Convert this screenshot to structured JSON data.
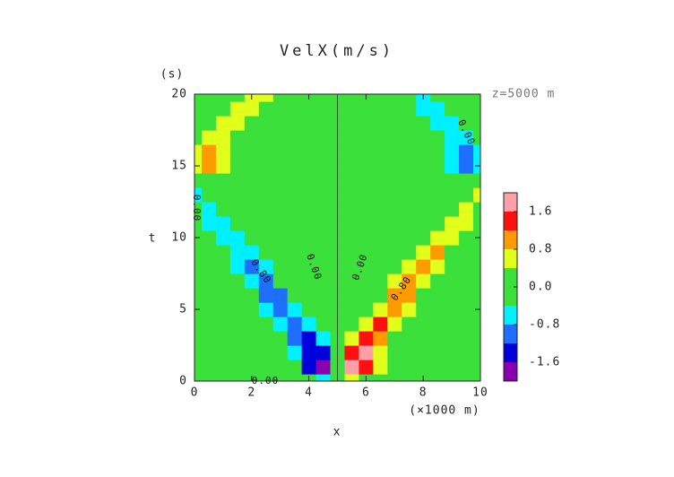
{
  "chart_data": {
    "type": "contour",
    "title": "VelX(m/s)",
    "y_unit": "(s)",
    "x_label": "x",
    "y_label": "t",
    "x_unit": "(×1000 m)",
    "annotation": "z=5000 m",
    "xlim": [
      0,
      10
    ],
    "ylim": [
      0,
      20
    ],
    "xticks": [
      0,
      2,
      4,
      6,
      8,
      10
    ],
    "yticks": [
      0,
      5,
      10,
      15,
      20
    ],
    "x": [
      0,
      0.5,
      1,
      1.5,
      2,
      2.5,
      3,
      3.5,
      4,
      4.5,
      5,
      5.5,
      6,
      6.5,
      7,
      7.5,
      8,
      8.5,
      9,
      9.5,
      10
    ],
    "y": [
      0,
      1,
      2,
      3,
      4,
      5,
      6,
      7,
      8,
      9,
      10,
      11,
      12,
      13,
      14,
      15,
      16,
      17,
      18,
      19,
      20
    ],
    "z": [
      [
        0,
        0,
        0,
        0,
        0,
        0,
        0,
        -0.1,
        -0.3,
        -0.5,
        0,
        0.5,
        0.3,
        0.1,
        0,
        0,
        0,
        0,
        0,
        0,
        0
      ],
      [
        0,
        0,
        0,
        0,
        0,
        0,
        -0.1,
        -0.4,
        -1.3,
        -2.0,
        0,
        2.0,
        1.3,
        0.4,
        0.1,
        0,
        0,
        0,
        0,
        0,
        0
      ],
      [
        0,
        0,
        0,
        0,
        0,
        0,
        -0.2,
        -0.7,
        -1.6,
        -1.4,
        0,
        1.4,
        1.6,
        0.7,
        0.2,
        0,
        0,
        0,
        0,
        0,
        0
      ],
      [
        0,
        0,
        0,
        0,
        0,
        0,
        -0.3,
        -1.1,
        -1.3,
        -0.6,
        0,
        0.6,
        1.3,
        1.1,
        0.3,
        0,
        0,
        0,
        0,
        0,
        0
      ],
      [
        0,
        0,
        0,
        0,
        0,
        -0.15,
        -0.7,
        -1.2,
        -0.7,
        -0.15,
        0,
        0.15,
        0.7,
        1.2,
        0.7,
        0.15,
        0,
        0,
        0,
        0,
        0
      ],
      [
        0,
        0,
        0,
        0,
        -0.1,
        -0.5,
        -1.1,
        -0.7,
        -0.15,
        0,
        0,
        0,
        0.15,
        0.7,
        1.1,
        0.5,
        0.1,
        0,
        0,
        0,
        0
      ],
      [
        0,
        0,
        0,
        0,
        -0.3,
        -0.9,
        -0.9,
        -0.3,
        0,
        0,
        0,
        0,
        0,
        0.3,
        0.9,
        0.9,
        0.3,
        0,
        0,
        0,
        0
      ],
      [
        0,
        0,
        0,
        -0.1,
        -0.6,
        -0.9,
        -0.4,
        -0.05,
        0,
        0,
        0,
        0,
        0,
        0.05,
        0.4,
        0.9,
        0.6,
        0.1,
        0,
        0,
        0
      ],
      [
        0,
        0,
        -0.1,
        -0.5,
        -0.85,
        -0.5,
        -0.1,
        0,
        0,
        0,
        0,
        0,
        0,
        0,
        0.1,
        0.5,
        0.85,
        0.5,
        0.1,
        0,
        0
      ],
      [
        0,
        0,
        -0.3,
        -0.8,
        -0.6,
        -0.1,
        0,
        0,
        0,
        0,
        0,
        0,
        0,
        0,
        0,
        0.1,
        0.6,
        0.8,
        0.3,
        0,
        0
      ],
      [
        0,
        -0.1,
        -0.6,
        -0.65,
        -0.2,
        0,
        0,
        0,
        0,
        0,
        0,
        0,
        0,
        0,
        0,
        0,
        0.2,
        0.65,
        0.6,
        0.1,
        0
      ],
      [
        -0.1,
        -0.45,
        -0.6,
        -0.2,
        0,
        0,
        0,
        0,
        0,
        0,
        0,
        0,
        0,
        0,
        0,
        0,
        0,
        0.2,
        0.6,
        0.45,
        0.1
      ],
      [
        -0.3,
        -0.5,
        -0.3,
        -0.05,
        0,
        0,
        0,
        0,
        0,
        0,
        0,
        0,
        0,
        0,
        0,
        0,
        0,
        0.05,
        0.3,
        0.5,
        0.3
      ],
      [
        -0.45,
        -0.3,
        -0.05,
        0,
        0,
        0,
        0,
        0,
        0,
        0,
        0,
        0,
        0,
        0,
        0,
        0,
        0,
        0,
        0.05,
        0.3,
        0.45
      ],
      [
        -0.1,
        0.3,
        0.1,
        0,
        0,
        0,
        0,
        0,
        0,
        0,
        0,
        0,
        0,
        0,
        0,
        0,
        0,
        0,
        -0.1,
        -0.3,
        0.1
      ],
      [
        0.7,
        1.0,
        0.5,
        0.1,
        0,
        0,
        0,
        0,
        0,
        0,
        0,
        0,
        0,
        0,
        0,
        0,
        0,
        -0.1,
        -0.5,
        -1.0,
        -0.7
      ],
      [
        0.6,
        0.9,
        0.6,
        0.2,
        0,
        0,
        0,
        0,
        0,
        0,
        0,
        0,
        0,
        0,
        0,
        0,
        0,
        -0.2,
        -0.6,
        -0.9,
        -0.6
      ],
      [
        0.2,
        0.5,
        0.6,
        0.3,
        0,
        0,
        0,
        0,
        0,
        0,
        0,
        0,
        0,
        0,
        0,
        0,
        0,
        -0.3,
        -0.6,
        -0.5,
        -0.2
      ],
      [
        0,
        0.2,
        0.5,
        0.5,
        0.1,
        0,
        0,
        0,
        0,
        0,
        0,
        0,
        0,
        0,
        0,
        0,
        -0.1,
        -0.5,
        -0.5,
        -0.2,
        0
      ],
      [
        0,
        0,
        0.2,
        0.5,
        0.5,
        0.1,
        0,
        0,
        0,
        0,
        0,
        0,
        0,
        0,
        0,
        -0.1,
        -0.5,
        -0.5,
        -0.2,
        0,
        0
      ],
      [
        0,
        0,
        0.1,
        0.3,
        0.5,
        0.4,
        0,
        0,
        0,
        0,
        0,
        0,
        0,
        0,
        0,
        -0.4,
        -0.5,
        -0.3,
        -0.1,
        0,
        0
      ]
    ],
    "levels": [
      -1.6,
      -1.2,
      -0.8,
      -0.4,
      0.4,
      0.8,
      1.2,
      1.6
    ],
    "colors": [
      "#8a00b0",
      "#0000dd",
      "#1f6fff",
      "#00f0ff",
      "#3be03b",
      "#e2ff1c",
      "#ff9a00",
      "#ff1010",
      "#ff9fa8"
    ],
    "clim": [
      -2.0,
      2.0
    ],
    "colorbar_ticks": [
      1.6,
      0.8,
      {
        "value": 0,
        "label": "0.0"
      },
      -0.8,
      -1.6
    ],
    "contour_labels": [
      "0.00",
      "0.00",
      "0.80",
      "0.80",
      "0.00",
      "0.00",
      "0.00"
    ]
  }
}
